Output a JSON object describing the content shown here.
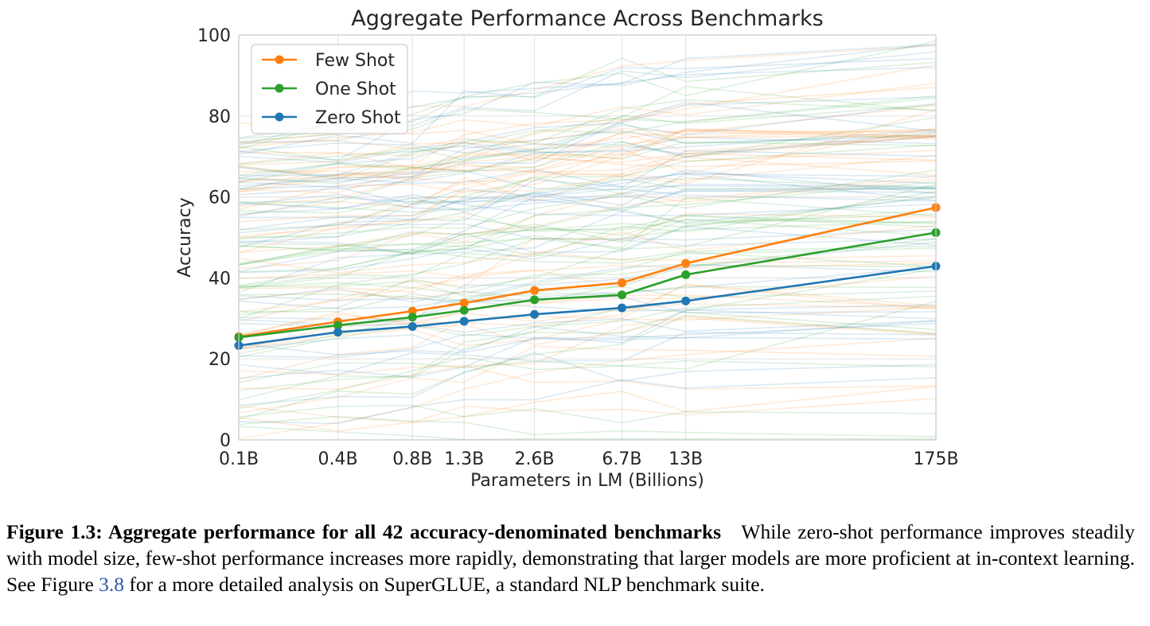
{
  "chart_data": {
    "type": "line",
    "title": "Aggregate Performance Across Benchmarks",
    "xlabel": "Parameters in LM (Billions)",
    "ylabel": "Accuracy",
    "categories": [
      "0.1B",
      "0.4B",
      "0.8B",
      "1.3B",
      "2.6B",
      "6.7B",
      "13B",
      "175B"
    ],
    "x_log_values": [
      0.125,
      0.35,
      0.76,
      1.3,
      2.7,
      6.7,
      13,
      175
    ],
    "x_scale": "log",
    "ylim": [
      0,
      100
    ],
    "yticks": [
      0,
      20,
      40,
      60,
      80,
      100
    ],
    "grid": true,
    "legend_position": "top-left",
    "series": [
      {
        "name": "Few Shot",
        "color": "#ff7f0e",
        "values": [
          25.5,
          29.2,
          31.8,
          33.8,
          36.9,
          38.8,
          43.6,
          57.4
        ]
      },
      {
        "name": "One Shot",
        "color": "#2ca02c",
        "values": [
          25.3,
          28.3,
          30.3,
          32.0,
          34.6,
          35.8,
          40.8,
          51.2
        ]
      },
      {
        "name": "Zero Shot",
        "color": "#1f77b4",
        "values": [
          23.3,
          26.6,
          28.0,
          29.3,
          31.0,
          32.6,
          34.3,
          42.9
        ]
      }
    ],
    "background_lines_note_count": 42
  },
  "caption": {
    "title": "Figure 1.3: Aggregate performance for all 42 accuracy-denominated benchmarks",
    "body_before_link": "While zero-shot performance improves steadily with model size, few-shot performance increases more rapidly, demonstrating that larger models are more proficient at in-context learning. See Figure",
    "link_text": "3.8",
    "body_after_link": "for a more detailed analysis on SuperGLUE, a standard NLP benchmark suite."
  }
}
